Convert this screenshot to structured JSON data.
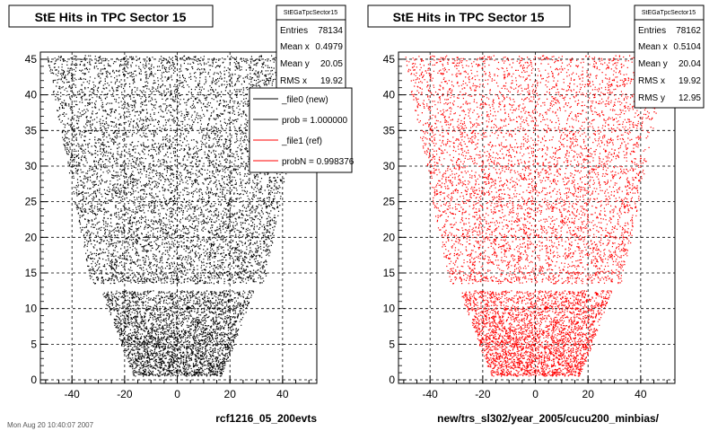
{
  "footer_text": "Mon Aug 20 10:40:07 2007",
  "chart_data": [
    {
      "type": "scatter",
      "title": "StE Hits in TPC Sector 15",
      "xlabel": "rcf1216_05_200evts",
      "ylabel": "",
      "xlim": [
        -52,
        53
      ],
      "ylim": [
        -0.5,
        46
      ],
      "xticks": [
        -40,
        -20,
        0,
        20,
        40
      ],
      "yticks": [
        0,
        5,
        10,
        15,
        20,
        25,
        30,
        35,
        40,
        45
      ],
      "grid": true,
      "marker_color": "#000000",
      "stats": {
        "name": "StEGaTpcSector15",
        "rows": [
          {
            "label": "Entries",
            "value": "78134"
          },
          {
            "label": "Mean x",
            "value": "0.4979"
          },
          {
            "label": "Mean y",
            "value": "20.05"
          },
          {
            "label": "RMS x",
            "value": "19.92"
          }
        ]
      },
      "legend": {
        "placement": "top-right",
        "entries": [
          {
            "label": "_file0 (new)",
            "color": "#000000"
          },
          {
            "label": "prob = 1.000000",
            "color": "#000000"
          },
          {
            "label": "_file1 (ref)",
            "color": "#ff0000"
          },
          {
            "label": "probN = 0.998376",
            "color": "#ff0000"
          }
        ]
      },
      "hits_region": {
        "upper": {
          "y": [
            13.5,
            45.5
          ],
          "x_half_at_y_min": 33,
          "x_half_at_y_max": 50
        },
        "lower": {
          "y": [
            0.5,
            12.5
          ],
          "x_half_at_y_min": 17,
          "x_half_at_y_max": 29
        }
      }
    },
    {
      "type": "scatter",
      "title": "StE Hits in TPC Sector 15",
      "xlabel": "new/trs_sl302/year_2005/cucu200_minbias/",
      "ylabel": "",
      "xlim": [
        -52,
        53
      ],
      "ylim": [
        -0.5,
        46
      ],
      "xticks": [
        -40,
        -20,
        0,
        20,
        40
      ],
      "yticks": [
        0,
        5,
        10,
        15,
        20,
        25,
        30,
        35,
        40,
        45
      ],
      "grid": true,
      "marker_color": "#ff0000",
      "stats": {
        "name": "StEGaTpcSector15",
        "rows": [
          {
            "label": "Entries",
            "value": "78162"
          },
          {
            "label": "Mean x",
            "value": "0.5104"
          },
          {
            "label": "Mean y",
            "value": "20.04"
          },
          {
            "label": "RMS x",
            "value": "19.92"
          },
          {
            "label": "RMS y",
            "value": "12.95"
          }
        ]
      },
      "hits_region": {
        "upper": {
          "y": [
            13.5,
            45.5
          ],
          "x_half_at_y_min": 33,
          "x_half_at_y_max": 50
        },
        "lower": {
          "y": [
            0.5,
            12.5
          ],
          "x_half_at_y_min": 17,
          "x_half_at_y_max": 29
        }
      }
    }
  ]
}
